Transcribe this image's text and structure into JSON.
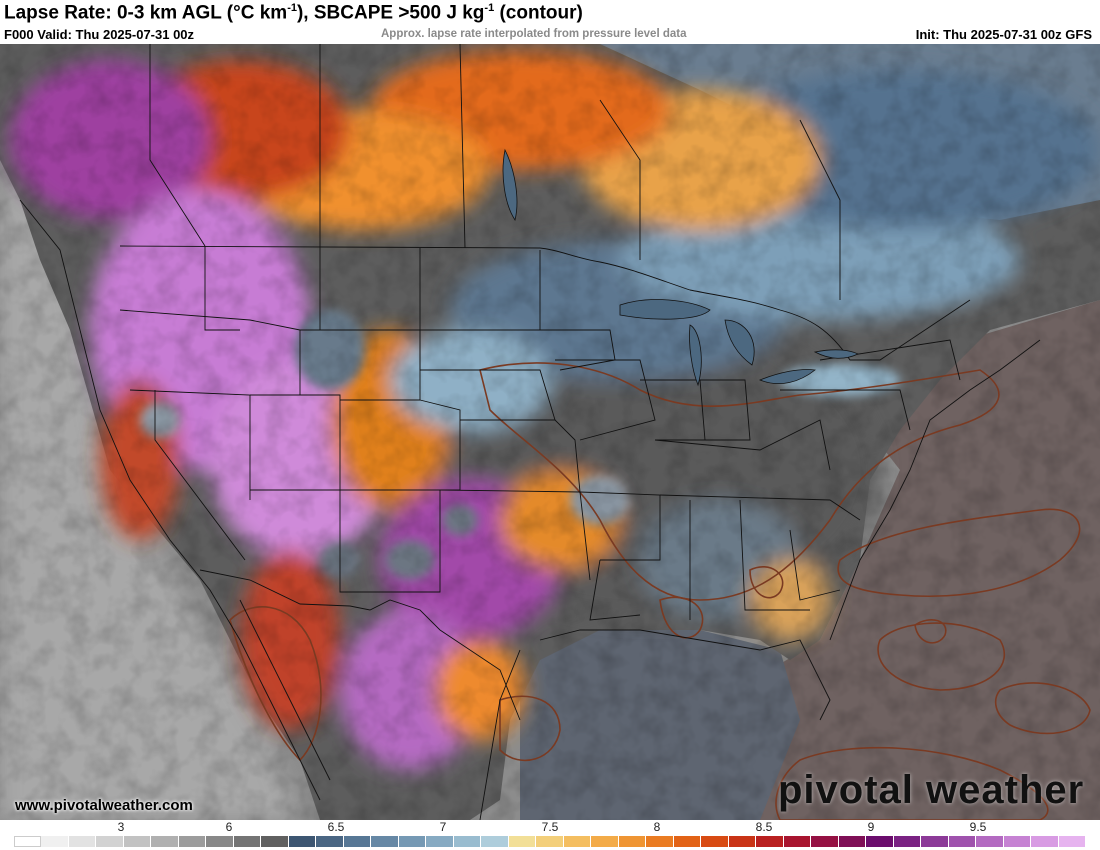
{
  "header": {
    "title_main": "Lapse Rate: 0-3 km AGL (°C km",
    "title_sup1": "-1",
    "title_mid": "), SBCAPE >500 J kg",
    "title_sup2": "-1",
    "title_end": " (contour)",
    "valid": "F000 Valid: Thu 2025-07-31 00z",
    "note": "Approx. lapse rate interpolated from pressure level data",
    "init": "Init: Thu 2025-07-31 00z GFS"
  },
  "colorbar": {
    "labels": [
      "3",
      "6",
      "6.5",
      "7",
      "7.5",
      "8",
      "8.5",
      "9",
      "9.5"
    ],
    "colors": [
      "#ffffff",
      "#f0f0f0",
      "#e2e2e2",
      "#d2d2d2",
      "#c2c2c2",
      "#b0b0b0",
      "#9c9c9c",
      "#888888",
      "#747474",
      "#606060",
      "#3d5672",
      "#4a6683",
      "#577795",
      "#6688a5",
      "#7599b4",
      "#86aac2",
      "#99bccf",
      "#aecddb",
      "#f2df97",
      "#f3cf7a",
      "#f4be60",
      "#f3ab48",
      "#ef9533",
      "#ea7c22",
      "#e26316",
      "#d84b13",
      "#c93416",
      "#b92020",
      "#a8152f",
      "#951143",
      "#7f0f57",
      "#6b0d6d",
      "#7a2283",
      "#8c3a98",
      "#9f52ad",
      "#b36ac1",
      "#c682d3",
      "#d89be3",
      "#e6b3ef"
    ]
  },
  "colors": {
    "ocean": "#8a8a8a",
    "atlantic": "#6f6261",
    "gulf": "#5d6470",
    "contour": "#7a3a22",
    "borders": "#111111"
  },
  "watermark": {
    "url": "www.pivotalweather.com",
    "logo": "pivotal weather"
  }
}
